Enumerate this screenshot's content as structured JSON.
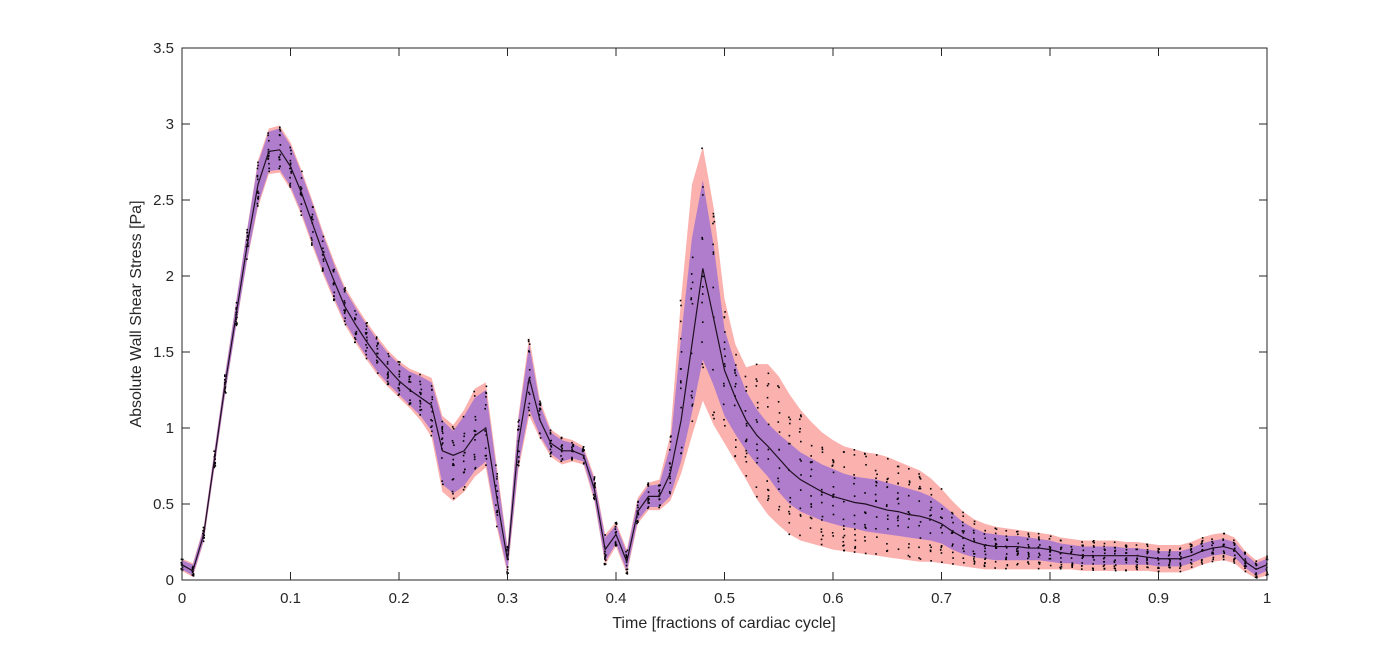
{
  "chart_data": {
    "type": "line",
    "title": "",
    "xlabel": "Time [fractions of cardiac cycle]",
    "ylabel": "Absolute Wall Shear Stress [Pa]",
    "xlim": [
      0,
      1
    ],
    "ylim": [
      0,
      3.5
    ],
    "x_ticks": [
      0,
      0.1,
      0.2,
      0.3,
      0.4,
      0.5,
      0.6,
      0.7,
      0.8,
      0.9,
      1
    ],
    "x_tick_labels": [
      "0",
      "0.1",
      "0.2",
      "0.3",
      "0.4",
      "0.5",
      "0.6",
      "0.7",
      "0.8",
      "0.9",
      "1"
    ],
    "y_ticks": [
      0,
      0.5,
      1,
      1.5,
      2,
      2.5,
      3,
      3.5
    ],
    "y_tick_labels": [
      "0",
      "0.5",
      "1",
      "1.5",
      "2",
      "2.5",
      "3",
      "3.5"
    ],
    "grid": false,
    "colors": {
      "outer_band": "#fbb1ad",
      "inner_band": "#b07ccc",
      "median_line": "#1e1020",
      "samples": "#000000",
      "axis": "#262626"
    },
    "x": [
      0,
      0.01,
      0.02,
      0.03,
      0.04,
      0.05,
      0.06,
      0.07,
      0.08,
      0.09,
      0.1,
      0.11,
      0.12,
      0.13,
      0.14,
      0.15,
      0.16,
      0.17,
      0.18,
      0.19,
      0.2,
      0.21,
      0.22,
      0.23,
      0.24,
      0.25,
      0.26,
      0.27,
      0.28,
      0.29,
      0.3,
      0.31,
      0.32,
      0.33,
      0.34,
      0.35,
      0.36,
      0.37,
      0.38,
      0.39,
      0.4,
      0.41,
      0.42,
      0.43,
      0.44,
      0.45,
      0.46,
      0.47,
      0.48,
      0.49,
      0.5,
      0.51,
      0.52,
      0.53,
      0.54,
      0.55,
      0.56,
      0.57,
      0.58,
      0.59,
      0.6,
      0.61,
      0.62,
      0.63,
      0.64,
      0.65,
      0.66,
      0.67,
      0.68,
      0.69,
      0.7,
      0.71,
      0.72,
      0.73,
      0.74,
      0.75,
      0.76,
      0.77,
      0.78,
      0.79,
      0.8,
      0.81,
      0.82,
      0.83,
      0.84,
      0.85,
      0.86,
      0.87,
      0.88,
      0.89,
      0.9,
      0.91,
      0.92,
      0.93,
      0.94,
      0.95,
      0.96,
      0.97,
      0.98,
      0.99,
      1.0
    ],
    "series": [
      {
        "name": "median",
        "values": [
          0.1,
          0.06,
          0.3,
          0.8,
          1.3,
          1.75,
          2.2,
          2.6,
          2.82,
          2.83,
          2.72,
          2.55,
          2.35,
          2.15,
          1.97,
          1.8,
          1.68,
          1.57,
          1.47,
          1.39,
          1.31,
          1.25,
          1.2,
          1.15,
          0.85,
          0.82,
          0.85,
          0.95,
          1.0,
          0.55,
          0.13,
          0.9,
          1.33,
          1.05,
          0.9,
          0.85,
          0.85,
          0.82,
          0.6,
          0.2,
          0.3,
          0.12,
          0.45,
          0.55,
          0.55,
          0.7,
          1.05,
          1.55,
          2.05,
          1.72,
          1.38,
          1.2,
          1.05,
          0.95,
          0.88,
          0.8,
          0.72,
          0.66,
          0.62,
          0.58,
          0.55,
          0.53,
          0.51,
          0.5,
          0.48,
          0.46,
          0.45,
          0.43,
          0.42,
          0.4,
          0.37,
          0.32,
          0.28,
          0.25,
          0.23,
          0.22,
          0.22,
          0.22,
          0.21,
          0.21,
          0.2,
          0.18,
          0.17,
          0.16,
          0.16,
          0.16,
          0.16,
          0.16,
          0.16,
          0.15,
          0.14,
          0.14,
          0.14,
          0.16,
          0.19,
          0.21,
          0.22,
          0.2,
          0.12,
          0.07,
          0.1
        ]
      },
      {
        "name": "inner_band_upper",
        "values": [
          0.13,
          0.1,
          0.34,
          0.85,
          1.36,
          1.83,
          2.3,
          2.74,
          2.95,
          2.97,
          2.86,
          2.68,
          2.48,
          2.27,
          2.08,
          1.91,
          1.79,
          1.68,
          1.58,
          1.49,
          1.42,
          1.37,
          1.34,
          1.3,
          1.05,
          0.98,
          1.08,
          1.2,
          1.25,
          0.72,
          0.2,
          1.05,
          1.55,
          1.15,
          0.97,
          0.92,
          0.9,
          0.86,
          0.66,
          0.28,
          0.36,
          0.18,
          0.52,
          0.62,
          0.63,
          0.88,
          1.6,
          2.25,
          2.63,
          2.2,
          1.65,
          1.42,
          1.24,
          1.12,
          1.03,
          0.96,
          0.9,
          0.84,
          0.8,
          0.76,
          0.73,
          0.7,
          0.68,
          0.67,
          0.66,
          0.64,
          0.62,
          0.6,
          0.58,
          0.55,
          0.5,
          0.44,
          0.38,
          0.34,
          0.31,
          0.3,
          0.29,
          0.29,
          0.28,
          0.27,
          0.26,
          0.24,
          0.23,
          0.22,
          0.22,
          0.22,
          0.22,
          0.21,
          0.21,
          0.2,
          0.19,
          0.19,
          0.19,
          0.21,
          0.24,
          0.26,
          0.27,
          0.25,
          0.17,
          0.11,
          0.14
        ]
      },
      {
        "name": "inner_band_lower",
        "values": [
          0.07,
          0.03,
          0.26,
          0.75,
          1.24,
          1.68,
          2.11,
          2.47,
          2.69,
          2.7,
          2.59,
          2.42,
          2.22,
          2.03,
          1.86,
          1.7,
          1.58,
          1.47,
          1.37,
          1.29,
          1.22,
          1.15,
          1.08,
          0.98,
          0.63,
          0.57,
          0.62,
          0.72,
          0.78,
          0.38,
          0.06,
          0.75,
          1.12,
          0.95,
          0.83,
          0.78,
          0.8,
          0.78,
          0.54,
          0.12,
          0.24,
          0.06,
          0.39,
          0.48,
          0.48,
          0.55,
          0.78,
          1.1,
          1.45,
          1.28,
          1.08,
          0.96,
          0.85,
          0.76,
          0.68,
          0.58,
          0.5,
          0.45,
          0.42,
          0.39,
          0.37,
          0.35,
          0.34,
          0.32,
          0.31,
          0.3,
          0.29,
          0.28,
          0.27,
          0.26,
          0.24,
          0.2,
          0.17,
          0.15,
          0.14,
          0.13,
          0.13,
          0.13,
          0.13,
          0.13,
          0.12,
          0.11,
          0.11,
          0.1,
          0.1,
          0.1,
          0.1,
          0.1,
          0.1,
          0.1,
          0.09,
          0.09,
          0.09,
          0.11,
          0.14,
          0.16,
          0.17,
          0.15,
          0.08,
          0.03,
          0.06
        ]
      },
      {
        "name": "outer_band_upper",
        "values": [
          0.14,
          0.11,
          0.35,
          0.86,
          1.37,
          1.84,
          2.31,
          2.76,
          2.97,
          2.99,
          2.88,
          2.7,
          2.5,
          2.29,
          2.1,
          1.93,
          1.81,
          1.7,
          1.6,
          1.51,
          1.44,
          1.39,
          1.36,
          1.33,
          1.08,
          1.02,
          1.12,
          1.26,
          1.3,
          0.76,
          0.22,
          1.08,
          1.6,
          1.18,
          0.99,
          0.94,
          0.92,
          0.88,
          0.68,
          0.3,
          0.38,
          0.2,
          0.54,
          0.64,
          0.66,
          0.95,
          1.85,
          2.6,
          2.85,
          2.45,
          1.85,
          1.55,
          1.4,
          1.42,
          1.42,
          1.34,
          1.22,
          1.12,
          1.04,
          0.97,
          0.92,
          0.88,
          0.86,
          0.84,
          0.83,
          0.81,
          0.78,
          0.75,
          0.72,
          0.67,
          0.6,
          0.52,
          0.45,
          0.4,
          0.37,
          0.35,
          0.34,
          0.33,
          0.32,
          0.31,
          0.3,
          0.28,
          0.27,
          0.26,
          0.26,
          0.26,
          0.26,
          0.25,
          0.25,
          0.24,
          0.23,
          0.23,
          0.23,
          0.25,
          0.28,
          0.3,
          0.31,
          0.28,
          0.19,
          0.13,
          0.16
        ]
      },
      {
        "name": "outer_band_lower",
        "values": [
          0.06,
          0.02,
          0.25,
          0.74,
          1.23,
          1.67,
          2.1,
          2.45,
          2.67,
          2.68,
          2.57,
          2.4,
          2.2,
          2.01,
          1.84,
          1.68,
          1.56,
          1.45,
          1.35,
          1.27,
          1.2,
          1.13,
          1.05,
          0.94,
          0.58,
          0.52,
          0.58,
          0.68,
          0.74,
          0.35,
          0.04,
          0.72,
          1.08,
          0.93,
          0.81,
          0.76,
          0.78,
          0.76,
          0.52,
          0.1,
          0.22,
          0.04,
          0.37,
          0.46,
          0.46,
          0.52,
          0.7,
          0.95,
          1.18,
          1.02,
          0.9,
          0.78,
          0.66,
          0.53,
          0.43,
          0.36,
          0.3,
          0.26,
          0.24,
          0.22,
          0.2,
          0.19,
          0.18,
          0.17,
          0.16,
          0.15,
          0.14,
          0.13,
          0.12,
          0.12,
          0.11,
          0.1,
          0.09,
          0.08,
          0.07,
          0.07,
          0.07,
          0.07,
          0.07,
          0.07,
          0.07,
          0.07,
          0.07,
          0.06,
          0.06,
          0.06,
          0.06,
          0.06,
          0.06,
          0.06,
          0.05,
          0.05,
          0.05,
          0.07,
          0.1,
          0.12,
          0.13,
          0.11,
          0.05,
          0.01,
          0.03
        ]
      }
    ]
  }
}
